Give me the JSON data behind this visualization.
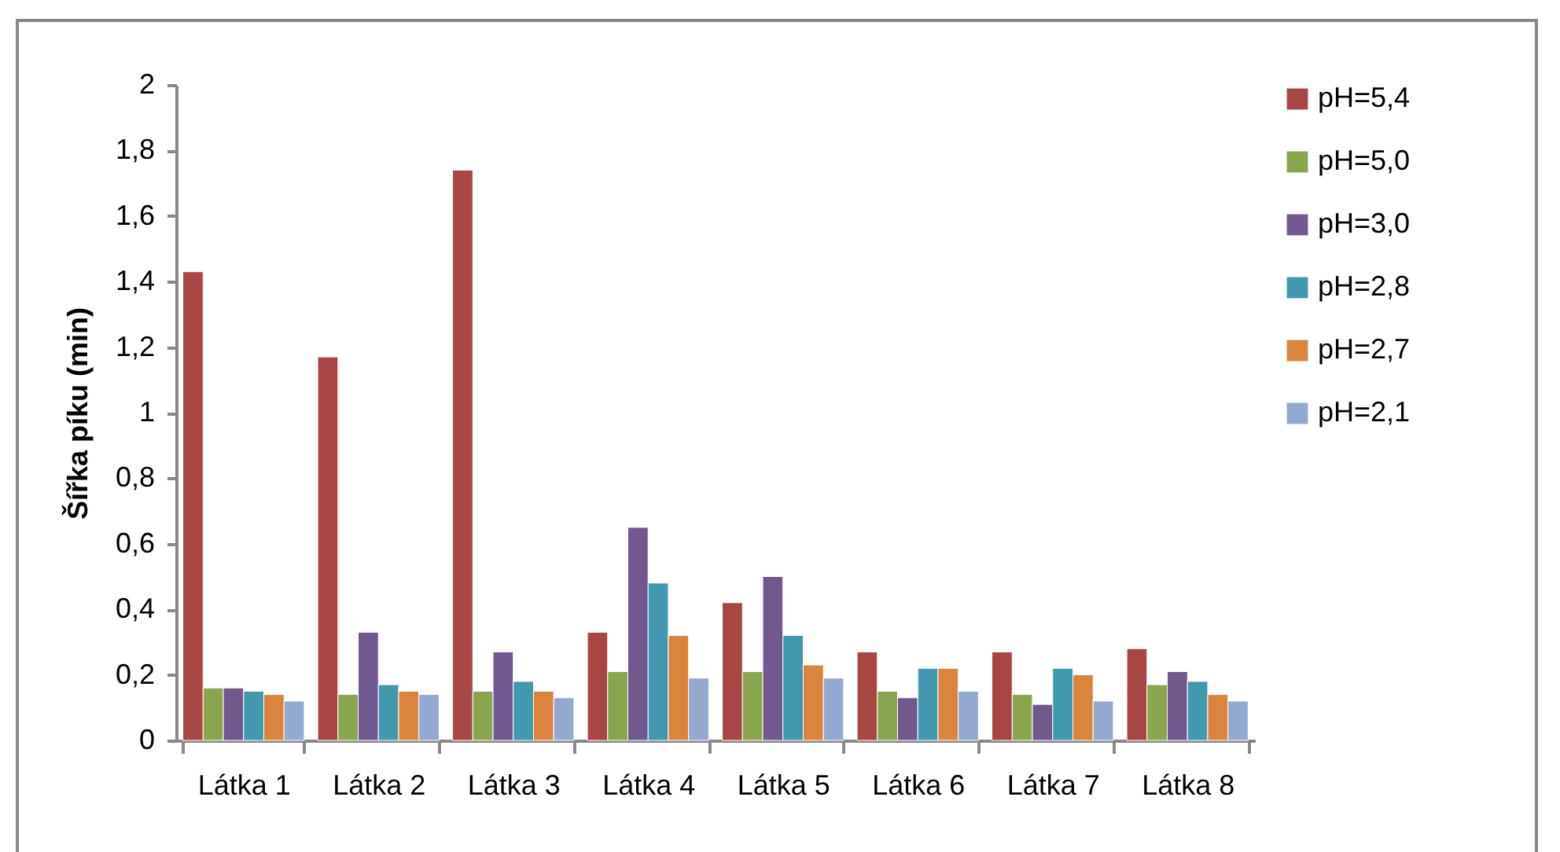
{
  "chart_data": {
    "type": "bar",
    "ylabel": "Šířka píku  (min)",
    "categories": [
      "Látka 1",
      "Látka 2",
      "Látka 3",
      "Látka 4",
      "Látka 5",
      "Látka 6",
      "Látka 7",
      "Látka 8"
    ],
    "series": [
      {
        "name": "pH=5,4",
        "color": "#a84645",
        "values": [
          1.43,
          1.17,
          1.74,
          0.33,
          0.42,
          0.27,
          0.27,
          0.28
        ]
      },
      {
        "name": "pH=5,0",
        "color": "#89a54e",
        "values": [
          0.16,
          0.14,
          0.15,
          0.21,
          0.21,
          0.15,
          0.14,
          0.17
        ]
      },
      {
        "name": "pH=3,0",
        "color": "#71588f",
        "values": [
          0.16,
          0.33,
          0.27,
          0.65,
          0.5,
          0.13,
          0.11,
          0.21
        ]
      },
      {
        "name": "pH=2,8",
        "color": "#4198af",
        "values": [
          0.15,
          0.17,
          0.18,
          0.48,
          0.32,
          0.22,
          0.22,
          0.18
        ]
      },
      {
        "name": "pH=2,7",
        "color": "#db843d",
        "values": [
          0.14,
          0.15,
          0.15,
          0.32,
          0.23,
          0.22,
          0.2,
          0.14
        ]
      },
      {
        "name": "pH=2,1",
        "color": "#93a9cf",
        "values": [
          0.12,
          0.14,
          0.13,
          0.19,
          0.19,
          0.15,
          0.12,
          0.12
        ]
      }
    ],
    "ylim": [
      0,
      2
    ],
    "yticks": [
      0,
      {
        "value": 0.2,
        "label": "0,2"
      },
      {
        "value": 0.4,
        "label": "0,4"
      },
      {
        "value": 0.6,
        "label": "0,6"
      },
      {
        "value": 0.8,
        "label": "0,8"
      },
      1,
      {
        "value": 1.2,
        "label": "1,2"
      },
      {
        "value": 1.4,
        "label": "1,4"
      },
      {
        "value": 1.6,
        "label": "1,6"
      },
      {
        "value": 1.8,
        "label": "1,8"
      },
      2
    ],
    "grid": false,
    "legend": "right"
  }
}
